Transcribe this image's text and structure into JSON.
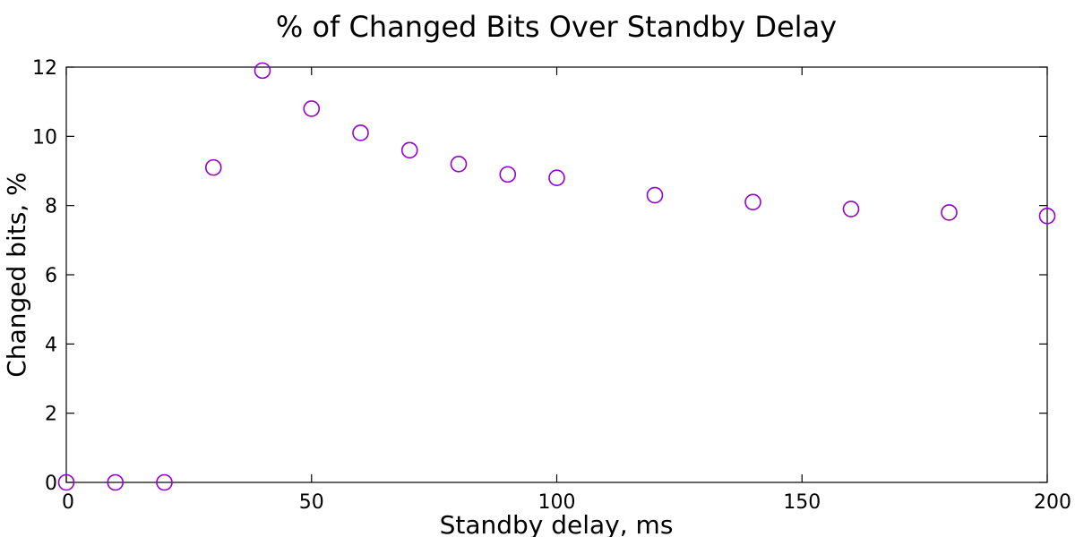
{
  "chart_data": {
    "type": "scatter",
    "title": "% of Changed Bits Over Standby Delay",
    "xlabel": "Standby delay, ms",
    "ylabel": "Changed bits, %",
    "xlim": [
      0,
      200
    ],
    "ylim": [
      0,
      12
    ],
    "xticks": [
      0,
      50,
      100,
      150,
      200
    ],
    "yticks": [
      0,
      2,
      4,
      6,
      8,
      10,
      12
    ],
    "grid": false,
    "legend": "none",
    "marker": "open-circle",
    "series": [
      {
        "color": "#9400d3",
        "x": [
          0,
          10,
          20,
          30,
          40,
          50,
          60,
          70,
          80,
          90,
          100,
          120,
          140,
          160,
          180,
          200
        ],
        "y": [
          0.0,
          0.0,
          0.0,
          9.1,
          11.9,
          10.8,
          10.1,
          9.6,
          9.2,
          8.9,
          8.8,
          8.3,
          8.1,
          7.9,
          7.8,
          7.7
        ]
      }
    ]
  }
}
